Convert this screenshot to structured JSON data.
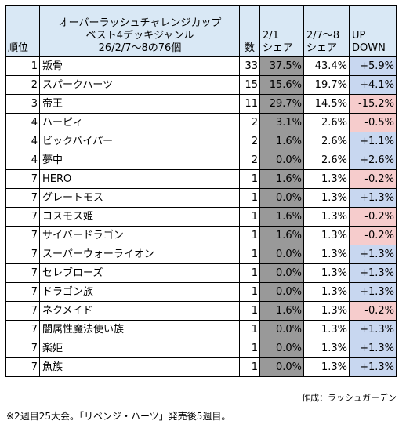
{
  "header": {
    "rank": "順位",
    "title_line1": "オーバーラッシュチャレンジカップ",
    "title_line2": "ベスト4デッキジャンル",
    "title_line3": "26/2/7〜8の76個",
    "count": "数",
    "prev_line1": "2/1",
    "prev_line2": "シェア",
    "cur_line1": "2/7〜8",
    "cur_line2": "シェア",
    "diff_line1": "UP",
    "diff_line2": "DOWN"
  },
  "colors": {
    "up": "#c8d7f0",
    "down": "#f6cccc",
    "prev_column": "#999999",
    "header": "#d9e8f5"
  },
  "rows": [
    {
      "rank": "1",
      "name": "叛骨",
      "count": "33",
      "prev": "37.5%",
      "cur": "43.4%",
      "diff": "+5.9%",
      "dir": "up"
    },
    {
      "rank": "2",
      "name": "スパークハーツ",
      "count": "15",
      "prev": "15.6%",
      "cur": "19.7%",
      "diff": "+4.1%",
      "dir": "up"
    },
    {
      "rank": "3",
      "name": "帝王",
      "count": "11",
      "prev": "29.7%",
      "cur": "14.5%",
      "diff": "-15.2%",
      "dir": "down"
    },
    {
      "rank": "4",
      "name": "ハーピィ",
      "count": "2",
      "prev": "3.1%",
      "cur": "2.6%",
      "diff": "-0.5%",
      "dir": "down"
    },
    {
      "rank": "4",
      "name": "ビックバイパー",
      "count": "2",
      "prev": "1.6%",
      "cur": "2.6%",
      "diff": "+1.1%",
      "dir": "up"
    },
    {
      "rank": "4",
      "name": "夢中",
      "count": "2",
      "prev": "0.0%",
      "cur": "2.6%",
      "diff": "+2.6%",
      "dir": "up"
    },
    {
      "rank": "7",
      "name": "HERO",
      "count": "1",
      "prev": "1.6%",
      "cur": "1.3%",
      "diff": "-0.2%",
      "dir": "down"
    },
    {
      "rank": "7",
      "name": "グレートモス",
      "count": "1",
      "prev": "0.0%",
      "cur": "1.3%",
      "diff": "+1.3%",
      "dir": "up"
    },
    {
      "rank": "7",
      "name": "コスモス姫",
      "count": "1",
      "prev": "1.6%",
      "cur": "1.3%",
      "diff": "-0.2%",
      "dir": "down"
    },
    {
      "rank": "7",
      "name": "サイバードラゴン",
      "count": "1",
      "prev": "1.6%",
      "cur": "1.3%",
      "diff": "-0.2%",
      "dir": "down"
    },
    {
      "rank": "7",
      "name": "スーパーウォーライオン",
      "count": "1",
      "prev": "0.0%",
      "cur": "1.3%",
      "diff": "+1.3%",
      "dir": "up"
    },
    {
      "rank": "7",
      "name": "セレブローズ",
      "count": "1",
      "prev": "0.0%",
      "cur": "1.3%",
      "diff": "+1.3%",
      "dir": "up"
    },
    {
      "rank": "7",
      "name": "ドラゴン族",
      "count": "1",
      "prev": "0.0%",
      "cur": "1.3%",
      "diff": "+1.3%",
      "dir": "up"
    },
    {
      "rank": "7",
      "name": "ネクメイド",
      "count": "1",
      "prev": "1.6%",
      "cur": "1.3%",
      "diff": "-0.2%",
      "dir": "down"
    },
    {
      "rank": "7",
      "name": "闇属性魔法使い族",
      "count": "1",
      "prev": "0.0%",
      "cur": "1.3%",
      "diff": "+1.3%",
      "dir": "up"
    },
    {
      "rank": "7",
      "name": "楽姫",
      "count": "1",
      "prev": "0.0%",
      "cur": "1.3%",
      "diff": "+1.3%",
      "dir": "up"
    },
    {
      "rank": "7",
      "name": "魚族",
      "count": "1",
      "prev": "0.0%",
      "cur": "1.3%",
      "diff": "+1.3%",
      "dir": "up"
    }
  ],
  "credit": "作成：ラッシュガーデン",
  "note": "※2週目25大会。「リベンジ・ハーツ」発売後5週目。"
}
